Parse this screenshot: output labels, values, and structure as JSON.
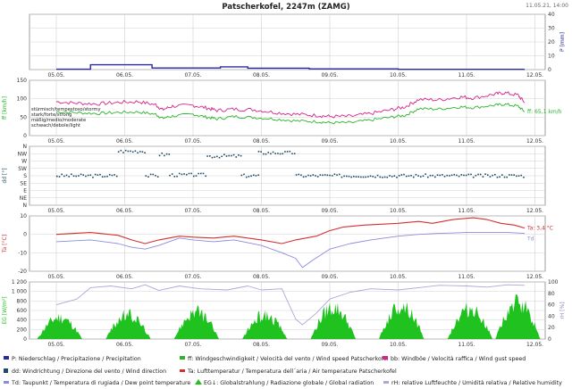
{
  "header": {
    "title": "Patscherkofel, 2247m (ZAMG)",
    "timestamp": "11.05.21, 14:00"
  },
  "colors": {
    "precip": "#2a2aa0",
    "wind_speed": "#2bb52b",
    "gust": "#d6238a",
    "wind_dir": "#1f4a66",
    "temp": "#d62f2f",
    "dew": "#8a8ae0",
    "glob": "#1fc21f",
    "rh": "#a9a9d9",
    "grid": "#d0d0d0",
    "frame": "#888888"
  },
  "chart_data": [
    {
      "type": "line",
      "id": "precip",
      "ylabel": "P [mm]",
      "y_axis_side": "right",
      "ylim": [
        0,
        40
      ],
      "yticks": [
        "0",
        "10",
        "20",
        "30",
        "40"
      ],
      "x_ticks": [
        "05.05.",
        "06.05.",
        "07.05.",
        "08.05.",
        "09.05.",
        "10.05.",
        "11.05.",
        "12.05."
      ],
      "series": [
        {
          "name": "P",
          "points": [
            [
              0.0,
              0.3
            ],
            [
              0.4,
              0.3
            ],
            [
              0.5,
              3.5
            ],
            [
              1.35,
              3.5
            ],
            [
              1.4,
              1.2
            ],
            [
              2.3,
              1.2
            ],
            [
              2.4,
              2.0
            ],
            [
              2.7,
              2.0
            ],
            [
              2.8,
              1.0
            ],
            [
              3.6,
              1.0
            ],
            [
              3.7,
              0.5
            ],
            [
              4.9,
              0.5
            ],
            [
              5.0,
              0.2
            ],
            [
              6.85,
              0.2
            ]
          ]
        }
      ]
    },
    {
      "type": "line",
      "id": "wind",
      "ylabel": "ff [km/h]",
      "ylim": [
        0,
        150
      ],
      "yticks": [
        "0",
        "50",
        "100",
        "150"
      ],
      "x_ticks": [
        "05.05.",
        "06.05.",
        "07.05.",
        "08.05.",
        "09.05.",
        "10.05.",
        "11.05.",
        "12.05."
      ],
      "level_labels": [
        "stürmisch/tempestoso/stormy",
        "stark/forte/strong",
        "mäßig/medio/moderate",
        "schwach/debole/light"
      ],
      "annotation": "ff: 65,1 km/h",
      "series": [
        {
          "name": "ff",
          "points": [
            [
              0.0,
              65
            ],
            [
              0.3,
              62
            ],
            [
              0.6,
              60
            ],
            [
              0.9,
              63
            ],
            [
              1.2,
              64
            ],
            [
              1.45,
              58
            ],
            [
              1.55,
              47
            ],
            [
              1.7,
              53
            ],
            [
              2.0,
              58
            ],
            [
              2.2,
              50
            ],
            [
              2.35,
              45
            ],
            [
              2.6,
              52
            ],
            [
              2.9,
              49
            ],
            [
              3.2,
              45
            ],
            [
              3.5,
              40
            ],
            [
              3.8,
              38
            ],
            [
              4.0,
              35
            ],
            [
              4.3,
              35
            ],
            [
              4.6,
              42
            ],
            [
              4.9,
              50
            ],
            [
              5.1,
              55
            ],
            [
              5.3,
              73
            ],
            [
              5.6,
              72
            ],
            [
              5.9,
              78
            ],
            [
              6.1,
              76
            ],
            [
              6.4,
              82
            ],
            [
              6.55,
              85
            ],
            [
              6.75,
              80
            ],
            [
              6.85,
              65
            ]
          ]
        },
        {
          "name": "bb",
          "points": [
            [
              0.0,
              92
            ],
            [
              0.3,
              88
            ],
            [
              0.6,
              86
            ],
            [
              0.9,
              90
            ],
            [
              1.2,
              92
            ],
            [
              1.45,
              84
            ],
            [
              1.55,
              70
            ],
            [
              1.7,
              80
            ],
            [
              2.0,
              82
            ],
            [
              2.2,
              75
            ],
            [
              2.35,
              68
            ],
            [
              2.6,
              72
            ],
            [
              2.9,
              70
            ],
            [
              3.2,
              63
            ],
            [
              3.5,
              58
            ],
            [
              3.8,
              55
            ],
            [
              4.0,
              52
            ],
            [
              4.3,
              52
            ],
            [
              4.6,
              60
            ],
            [
              4.9,
              70
            ],
            [
              5.1,
              78
            ],
            [
              5.3,
              98
            ],
            [
              5.6,
              97
            ],
            [
              5.9,
              105
            ],
            [
              6.1,
              102
            ],
            [
              6.4,
              112
            ],
            [
              6.55,
              116
            ],
            [
              6.75,
              110
            ],
            [
              6.85,
              90
            ]
          ]
        }
      ]
    },
    {
      "type": "scatter",
      "id": "direction",
      "ylabel": "dd [°]",
      "ylim": [
        0,
        360
      ],
      "yticks": [
        "N",
        "NE",
        "E",
        "SE",
        "S",
        "SW",
        "W",
        "NW",
        "N"
      ],
      "x_ticks": [
        "05.05.",
        "06.05.",
        "07.05.",
        "08.05.",
        "09.05.",
        "10.05.",
        "11.05.",
        "12.05."
      ],
      "segments": [
        {
          "x0": 0.0,
          "x1": 0.9,
          "value": 180
        },
        {
          "x0": 0.9,
          "x1": 1.3,
          "value": 330
        },
        {
          "x0": 1.3,
          "x1": 1.5,
          "value": 180
        },
        {
          "x0": 1.5,
          "x1": 1.65,
          "value": 310
        },
        {
          "x0": 1.65,
          "x1": 2.2,
          "value": 185
        },
        {
          "x0": 2.2,
          "x1": 2.7,
          "value": 300
        },
        {
          "x0": 2.7,
          "x1": 2.95,
          "value": 180
        },
        {
          "x0": 2.95,
          "x1": 3.5,
          "value": 320
        },
        {
          "x0": 3.5,
          "x1": 6.85,
          "value": 180
        }
      ]
    },
    {
      "type": "line",
      "id": "temperature",
      "ylabel": "Ta [°C]",
      "ylim": [
        -20,
        10
      ],
      "yticks": [
        "-20",
        "-10",
        "0",
        "10"
      ],
      "x_ticks": [
        "05.05.",
        "06.05.",
        "07.05.",
        "08.05.",
        "09.05.",
        "10.05.",
        "11.05.",
        "12.05."
      ],
      "annotations": [
        "Ta: 3,4 °C",
        "Td"
      ],
      "series": [
        {
          "name": "Ta",
          "points": [
            [
              0.0,
              0
            ],
            [
              0.5,
              1
            ],
            [
              0.9,
              -0.5
            ],
            [
              1.1,
              -3
            ],
            [
              1.3,
              -5
            ],
            [
              1.5,
              -3
            ],
            [
              1.8,
              -1
            ],
            [
              2.0,
              -1.5
            ],
            [
              2.3,
              -2
            ],
            [
              2.6,
              -1
            ],
            [
              3.0,
              -3
            ],
            [
              3.3,
              -5
            ],
            [
              3.5,
              -3
            ],
            [
              3.8,
              -1
            ],
            [
              4.0,
              2
            ],
            [
              4.2,
              4
            ],
            [
              4.5,
              5
            ],
            [
              5.0,
              6
            ],
            [
              5.3,
              7
            ],
            [
              5.5,
              6
            ],
            [
              5.8,
              8
            ],
            [
              6.1,
              9
            ],
            [
              6.3,
              8
            ],
            [
              6.5,
              6
            ],
            [
              6.7,
              5
            ],
            [
              6.85,
              3.4
            ]
          ]
        },
        {
          "name": "Td",
          "points": [
            [
              0.0,
              -4
            ],
            [
              0.5,
              -3
            ],
            [
              0.9,
              -5
            ],
            [
              1.1,
              -7
            ],
            [
              1.3,
              -8
            ],
            [
              1.5,
              -6
            ],
            [
              1.8,
              -2
            ],
            [
              2.0,
              -3
            ],
            [
              2.3,
              -4
            ],
            [
              2.6,
              -3
            ],
            [
              3.0,
              -6
            ],
            [
              3.3,
              -10
            ],
            [
              3.5,
              -13
            ],
            [
              3.6,
              -18
            ],
            [
              3.75,
              -14
            ],
            [
              4.0,
              -8
            ],
            [
              4.3,
              -5
            ],
            [
              4.6,
              -3
            ],
            [
              5.0,
              -1
            ],
            [
              5.3,
              0
            ],
            [
              5.6,
              0.5
            ],
            [
              6.0,
              1
            ],
            [
              6.3,
              1
            ],
            [
              6.6,
              1
            ],
            [
              6.85,
              0.5
            ]
          ]
        }
      ]
    },
    {
      "type": "area",
      "id": "radiation",
      "ylabel": "EG [W/m²]",
      "ylabel_right": "rH [%]",
      "ylim": [
        0,
        1200
      ],
      "ylim_right": [
        0,
        100
      ],
      "yticks": [
        "0",
        "200",
        "400",
        "600",
        "800",
        "1 000",
        "1 200"
      ],
      "yticks_right": [
        "0",
        "20",
        "40",
        "60",
        "80",
        "100"
      ],
      "x_ticks": [
        "05.05.",
        "06.05.",
        "07.05.",
        "08.05.",
        "09.05.",
        "10.05.",
        "11.05.",
        "12.05."
      ],
      "daily_peaks": [
        {
          "day": 0,
          "peak": 580
        },
        {
          "day": 1,
          "peak": 650
        },
        {
          "day": 2,
          "peak": 720
        },
        {
          "day": 3,
          "peak": 640
        },
        {
          "day": 4,
          "peak": 850
        },
        {
          "day": 5,
          "peak": 900
        },
        {
          "day": 6,
          "peak": 820
        },
        {
          "day": 6.7,
          "peak": 950
        }
      ],
      "series_right": [
        {
          "name": "rH",
          "points": [
            [
              0.0,
              60
            ],
            [
              0.3,
              70
            ],
            [
              0.5,
              90
            ],
            [
              0.8,
              93
            ],
            [
              1.1,
              88
            ],
            [
              1.3,
              95
            ],
            [
              1.5,
              85
            ],
            [
              1.8,
              93
            ],
            [
              2.1,
              88
            ],
            [
              2.5,
              86
            ],
            [
              2.8,
              93
            ],
            [
              3.0,
              86
            ],
            [
              3.3,
              88
            ],
            [
              3.5,
              35
            ],
            [
              3.6,
              25
            ],
            [
              3.8,
              45
            ],
            [
              4.0,
              70
            ],
            [
              4.3,
              82
            ],
            [
              4.6,
              88
            ],
            [
              5.0,
              86
            ],
            [
              5.3,
              90
            ],
            [
              5.6,
              94
            ],
            [
              6.0,
              93
            ],
            [
              6.3,
              91
            ],
            [
              6.6,
              95
            ],
            [
              6.85,
              94
            ]
          ]
        }
      ]
    }
  ],
  "legend": {
    "row1": [
      {
        "key": "P",
        "label": "P: Niederschlag / Precipitazione / Precipitation"
      },
      {
        "key": "ff",
        "label": "ff: Windgeschwindigkeit / Velocità del vento / Wind speed  Patscherkofel"
      },
      {
        "key": "bb",
        "label": "bb: Windböe / Velocità raffica / Wind gust speed"
      }
    ],
    "row2": [
      {
        "key": "dd",
        "label": "dd: Windrichtung / Direzione del vento / Wind direction"
      },
      {
        "key": "Ta",
        "label": "Ta: Lufttemperatur / Temperatura dell´aria / Air temperature  Patscherkofel"
      }
    ],
    "row3": [
      {
        "key": "Td",
        "label": "Td: Taupunkt / Temperatura di rugiada / Dew point temperature"
      },
      {
        "key": "EG",
        "label": "EG↓: Globalstrahlung / Radiazione globale / Global radiation"
      },
      {
        "key": "rH",
        "label": "rH: relative Luftfeuchte / Umidità relativa / Relative humidity"
      }
    ]
  }
}
